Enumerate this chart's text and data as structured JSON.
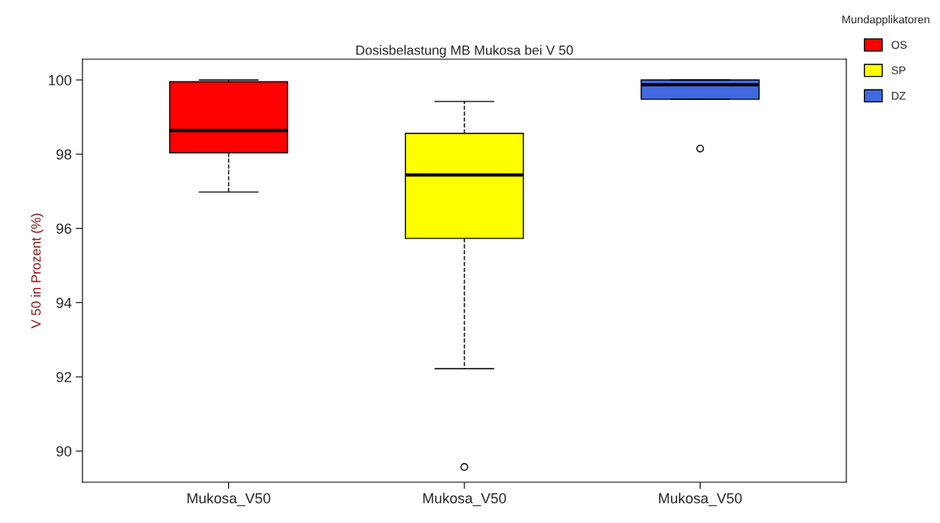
{
  "chart_data": {
    "type": "box",
    "title": "Dosisbelastung MB Mukosa bei V 50",
    "ylabel": "V 50 in Prozent (%)",
    "legend_title": "Mundapplikatoren",
    "categories": [
      "Mukosa_V50",
      "Mukosa_V50",
      "Mukosa_V50"
    ],
    "series": [
      {
        "name": "OS",
        "color": "#ff0000",
        "boxes": [
          {
            "low": 96.98,
            "q1": 98.04,
            "median": 98.64,
            "q3": 99.95,
            "high": 100.0
          },
          null,
          null
        ]
      },
      {
        "name": "SP",
        "color": "#ffff00",
        "boxes": [
          null,
          {
            "low": 92.22,
            "q1": 95.73,
            "median": 97.44,
            "q3": 98.56,
            "high": 99.42,
            "outliers": [
              89.57
            ]
          },
          null
        ]
      },
      {
        "name": "DZ",
        "color": "#4169e1",
        "boxes": [
          null,
          null,
          {
            "low": 99.48,
            "q1": 99.48,
            "median": 99.87,
            "q3": 100.0,
            "high": 100.0,
            "outliers": [
              98.15
            ]
          }
        ]
      }
    ],
    "ylim": [
      89.16,
      100.56
    ],
    "yticks": [
      90,
      92,
      94,
      96,
      98,
      100
    ],
    "grid": false,
    "legend": "top right"
  }
}
